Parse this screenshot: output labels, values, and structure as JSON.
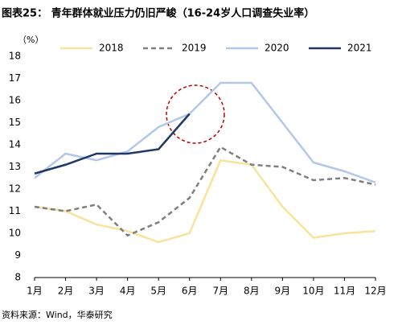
{
  "chart_data": {
    "type": "line",
    "title": "图表25：  青年群体就业压力仍旧严峻（16-24岁人口调查失业率）",
    "y_label": "（%）",
    "source": "资料来源：Wind，华泰研究",
    "categories": [
      "1月",
      "2月",
      "3月",
      "4月",
      "5月",
      "6月",
      "7月",
      "8月",
      "9月",
      "10月",
      "11月",
      "12月"
    ],
    "series": [
      {
        "name": "2018",
        "color": "#f7e39c",
        "dash": false,
        "values": [
          11.2,
          11.0,
          10.4,
          10.1,
          9.6,
          10.0,
          13.3,
          13.1,
          11.2,
          9.8,
          10.0,
          10.1
        ]
      },
      {
        "name": "2019",
        "color": "#7f7f7f",
        "dash": true,
        "values": [
          11.2,
          11.0,
          11.3,
          9.9,
          10.5,
          11.6,
          13.9,
          13.1,
          13.0,
          12.4,
          12.5,
          12.2
        ]
      },
      {
        "name": "2020",
        "color": "#b4c7e7",
        "dash": false,
        "values": [
          12.5,
          13.6,
          13.3,
          13.7,
          14.8,
          15.4,
          16.8,
          16.8,
          15.0,
          13.2,
          12.8,
          12.3
        ]
      },
      {
        "name": "2021",
        "color": "#1f3864",
        "dash": false,
        "values": [
          12.7,
          13.1,
          13.6,
          13.6,
          13.8,
          15.4,
          null,
          null,
          null,
          null,
          null,
          null
        ]
      }
    ],
    "ylim": [
      8,
      18
    ],
    "yticks": [
      8,
      9,
      10,
      11,
      12,
      13,
      14,
      15,
      16,
      17,
      18
    ],
    "grid": false,
    "legend": "top"
  }
}
